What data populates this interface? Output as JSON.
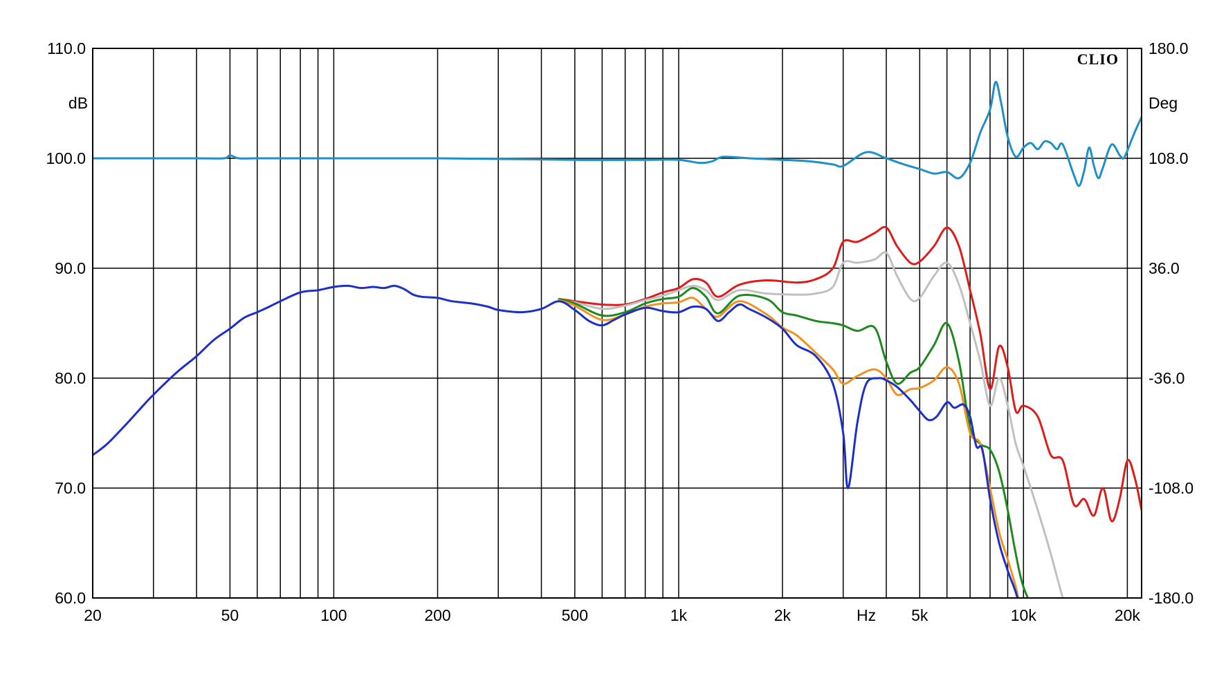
{
  "chart_data": {
    "type": "line",
    "title": "",
    "brand_label": "CLIO",
    "xscale": "log",
    "xlim": [
      20,
      22000
    ],
    "ylim_left": [
      60,
      110
    ],
    "ylim_right": [
      -180,
      180
    ],
    "ylabel_left": "dB",
    "ylabel_right": "Deg",
    "xlabel": "Hz",
    "grid": true,
    "colors": {
      "frame": "#000000",
      "phase": "#1f8fc8",
      "red": "#dd1c1c",
      "gray": "#c0c0c0",
      "green": "#1e8a1e",
      "orange": "#f0921e",
      "blue": "#1c2fc8"
    },
    "x_ticks": [
      {
        "value": 20,
        "label": "20"
      },
      {
        "value": 50,
        "label": "50"
      },
      {
        "value": 100,
        "label": "100"
      },
      {
        "value": 200,
        "label": "200"
      },
      {
        "value": 500,
        "label": "500"
      },
      {
        "value": 1000,
        "label": "1k"
      },
      {
        "value": 2000,
        "label": "2k"
      },
      {
        "value": 3500,
        "label": "Hz"
      },
      {
        "value": 5000,
        "label": "5k"
      },
      {
        "value": 10000,
        "label": "10k"
      },
      {
        "value": 20000,
        "label": "20k"
      }
    ],
    "x_gridlines": [
      30,
      40,
      50,
      60,
      70,
      80,
      90,
      100,
      200,
      300,
      400,
      500,
      600,
      700,
      800,
      900,
      1000,
      2000,
      3000,
      4000,
      5000,
      6000,
      7000,
      8000,
      9000,
      10000,
      20000
    ],
    "y_ticks_left": [
      {
        "value": 110,
        "label": "110.0"
      },
      {
        "value": 100,
        "label": "100.0"
      },
      {
        "value": 90,
        "label": "90.0"
      },
      {
        "value": 80,
        "label": "80.0"
      },
      {
        "value": 70,
        "label": "70.0"
      },
      {
        "value": 60,
        "label": "60.0"
      }
    ],
    "y_ticks_right": [
      {
        "value": 180,
        "label": "180.0"
      },
      {
        "value": 108,
        "label": "108.0"
      },
      {
        "value": 36,
        "label": "36.0"
      },
      {
        "value": -36,
        "label": "-36.0"
      },
      {
        "value": -108,
        "label": "-108.0"
      },
      {
        "value": -180,
        "label": "-180.0"
      }
    ],
    "series": [
      {
        "color_key": "phase",
        "axis": "right",
        "x": [
          20,
          25,
          30,
          40,
          48,
          50,
          53,
          60,
          80,
          100,
          200,
          500,
          800,
          1000,
          1150,
          1250,
          1350,
          1600,
          2000,
          2400,
          2800,
          3000,
          3500,
          4000,
          4500,
          5000,
          5500,
          6000,
          6500,
          7000,
          7500,
          8000,
          8300,
          8600,
          9000,
          9500,
          10000,
          10500,
          11000,
          11500,
          12000,
          12500,
          13000,
          14000,
          14500,
          15000,
          15500,
          16000,
          16500,
          17000,
          18000,
          19000,
          19500,
          20000,
          21000,
          22000
        ],
        "y": [
          108,
          108,
          108,
          108,
          108,
          110,
          108,
          108,
          108,
          108,
          108,
          107,
          107,
          107,
          105,
          106,
          109,
          108,
          107,
          106,
          104,
          103,
          112,
          108,
          104,
          101,
          98,
          99,
          95,
          105,
          125,
          140,
          158,
          145,
          122,
          109,
          115,
          118,
          114,
          119,
          118,
          114,
          117,
          97,
          90,
          100,
          115,
          103,
          95,
          102,
          117,
          110,
          108,
          113,
          125,
          135
        ]
      },
      {
        "color_key": "red",
        "axis": "left",
        "x": [
          450,
          500,
          600,
          700,
          800,
          900,
          1000,
          1100,
          1200,
          1300,
          1500,
          1800,
          2200,
          2500,
          2800,
          3000,
          3300,
          3700,
          4000,
          4300,
          4700,
          5000,
          5500,
          6000,
          6500,
          7000,
          7500,
          8000,
          8500,
          9000,
          9500,
          10000,
          11000,
          12000,
          13000,
          14000,
          15000,
          16000,
          17000,
          18000,
          19000,
          20000,
          21000,
          22000
        ],
        "y": [
          87.2,
          87.0,
          86.7,
          86.7,
          87.2,
          87.8,
          88.2,
          89.0,
          88.7,
          87.4,
          88.5,
          88.9,
          88.7,
          89.0,
          90.0,
          92.4,
          92.4,
          93.2,
          93.7,
          92.0,
          90.5,
          90.6,
          92.0,
          93.7,
          92.0,
          88.0,
          84.0,
          79.0,
          82.9,
          81.0,
          77.0,
          77.5,
          76.5,
          73.0,
          72.5,
          68.5,
          69.0,
          67.5,
          70.0,
          67.0,
          69.0,
          72.5,
          71.0,
          68.0
        ]
      },
      {
        "color_key": "gray",
        "axis": "left",
        "x": [
          450,
          500,
          600,
          700,
          800,
          900,
          1000,
          1100,
          1200,
          1300,
          1500,
          1800,
          2200,
          2500,
          2800,
          3000,
          3300,
          3700,
          4000,
          4300,
          4700,
          5000,
          5500,
          6000,
          6500,
          7000,
          7500,
          8000,
          8500,
          9000,
          9500,
          10000,
          11000,
          12000,
          13000,
          14000,
          15000
        ],
        "y": [
          87.1,
          86.9,
          86.3,
          86.6,
          87.1,
          87.5,
          88.0,
          88.4,
          88.0,
          87.1,
          88.0,
          87.7,
          87.6,
          87.7,
          88.3,
          90.5,
          90.5,
          90.8,
          91.4,
          89.3,
          87.2,
          87.3,
          89.3,
          90.5,
          88.5,
          85.0,
          81.5,
          77.5,
          80.0,
          77.5,
          74.0,
          72.0,
          68.0,
          64.0,
          60.0,
          57.0,
          55.0
        ]
      },
      {
        "color_key": "green",
        "axis": "left",
        "x": [
          450,
          500,
          600,
          700,
          800,
          900,
          1000,
          1100,
          1200,
          1300,
          1500,
          1800,
          2000,
          2200,
          2500,
          2800,
          3000,
          3300,
          3700,
          4000,
          4300,
          4700,
          5000,
          5500,
          6000,
          6500,
          7000,
          7500,
          8000,
          8500,
          9000,
          9500,
          10000,
          11000,
          12000
        ],
        "y": [
          87.2,
          86.8,
          85.7,
          86.0,
          86.8,
          87.2,
          87.4,
          88.2,
          87.4,
          85.9,
          87.5,
          87.2,
          86.0,
          85.7,
          85.2,
          85.0,
          84.8,
          84.3,
          84.6,
          81.5,
          79.5,
          80.5,
          81.0,
          83.0,
          85.0,
          81.5,
          75.5,
          74.0,
          73.5,
          71.5,
          68.0,
          64.0,
          61.0,
          58.0,
          55.0
        ]
      },
      {
        "color_key": "orange",
        "axis": "left",
        "x": [
          450,
          500,
          600,
          700,
          800,
          900,
          1000,
          1100,
          1200,
          1300,
          1500,
          1800,
          2000,
          2200,
          2500,
          2800,
          3000,
          3300,
          3700,
          4000,
          4300,
          4700,
          5000,
          5500,
          6000,
          6500,
          7000,
          7500,
          8000,
          8500,
          9000,
          9500,
          10000,
          11000
        ],
        "y": [
          87.1,
          86.6,
          85.3,
          85.8,
          86.5,
          86.8,
          86.9,
          87.3,
          86.3,
          85.6,
          87.0,
          85.8,
          84.6,
          83.9,
          82.3,
          80.8,
          79.5,
          80.2,
          80.8,
          80.0,
          78.5,
          79.0,
          79.1,
          79.8,
          81.0,
          79.5,
          75.0,
          74.0,
          70.0,
          66.0,
          63.5,
          61.0,
          58.0,
          55.0
        ]
      },
      {
        "color_key": "blue",
        "axis": "left",
        "x": [
          20,
          22,
          25,
          28,
          30,
          35,
          40,
          45,
          50,
          55,
          60,
          65,
          70,
          80,
          90,
          100,
          110,
          120,
          130,
          140,
          150,
          160,
          170,
          180,
          200,
          220,
          250,
          280,
          300,
          350,
          400,
          450,
          500,
          550,
          600,
          650,
          700,
          800,
          900,
          1000,
          1100,
          1200,
          1300,
          1400,
          1500,
          1600,
          1800,
          2000,
          2200,
          2500,
          2800,
          3000,
          3100,
          3300,
          3500,
          3800,
          4000,
          4300,
          4700,
          5000,
          5300,
          5600,
          6000,
          6300,
          6700,
          7000,
          7300,
          7600,
          8000,
          8500,
          9000,
          9500,
          10000
        ],
        "y": [
          73.0,
          74.0,
          75.8,
          77.5,
          78.5,
          80.5,
          82.0,
          83.5,
          84.5,
          85.5,
          86.0,
          86.5,
          87.0,
          87.8,
          88.0,
          88.3,
          88.4,
          88.2,
          88.3,
          88.2,
          88.4,
          88.1,
          87.6,
          87.4,
          87.3,
          87.0,
          86.8,
          86.5,
          86.2,
          86.0,
          86.3,
          87.0,
          86.2,
          85.2,
          84.8,
          85.3,
          85.8,
          86.4,
          86.1,
          86.0,
          86.5,
          86.3,
          85.2,
          86.0,
          86.7,
          86.3,
          85.5,
          84.5,
          83.0,
          82.0,
          79.5,
          75.0,
          70.0,
          76.0,
          79.5,
          80.0,
          79.8,
          79.2,
          78.0,
          77.0,
          76.2,
          76.5,
          77.8,
          77.3,
          77.6,
          76.5,
          73.8,
          73.5,
          69.0,
          65.0,
          62.5,
          60.5,
          58.0
        ]
      }
    ]
  }
}
